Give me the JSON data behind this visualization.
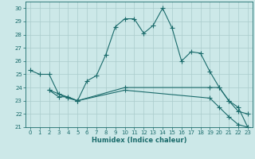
{
  "xlabel": "Humidex (Indice chaleur)",
  "bg_color": "#cce8e8",
  "line_color": "#1a6b6b",
  "grid_color": "#aacccc",
  "xlim": [
    -0.5,
    23.5
  ],
  "ylim": [
    21,
    30.5
  ],
  "yticks": [
    21,
    22,
    23,
    24,
    25,
    26,
    27,
    28,
    29,
    30
  ],
  "xticks": [
    0,
    1,
    2,
    3,
    4,
    5,
    6,
    7,
    8,
    9,
    10,
    11,
    12,
    13,
    14,
    15,
    16,
    17,
    18,
    19,
    20,
    21,
    22,
    23
  ],
  "line1_x": [
    0,
    1,
    2,
    3,
    4,
    5,
    6,
    7,
    8,
    9,
    10,
    11,
    12,
    13,
    14,
    15,
    16,
    17,
    18,
    19,
    20,
    21,
    22,
    23
  ],
  "line1_y": [
    25.3,
    25.0,
    25.0,
    23.5,
    23.2,
    23.0,
    24.5,
    24.9,
    26.5,
    28.6,
    29.2,
    29.2,
    28.1,
    28.7,
    30.0,
    28.5,
    26.0,
    26.7,
    26.6,
    25.2,
    24.0,
    23.0,
    22.2,
    22.0
  ],
  "line2_x": [
    2,
    3,
    4,
    5,
    10,
    19,
    20,
    21,
    22,
    23
  ],
  "line2_y": [
    23.8,
    23.3,
    23.3,
    23.0,
    24.0,
    24.0,
    24.0,
    23.0,
    22.5,
    21.0
  ],
  "line3_x": [
    2,
    5,
    10,
    19,
    20,
    21,
    22,
    23
  ],
  "line3_y": [
    23.8,
    23.0,
    23.8,
    23.2,
    22.5,
    21.8,
    21.2,
    21.0
  ]
}
